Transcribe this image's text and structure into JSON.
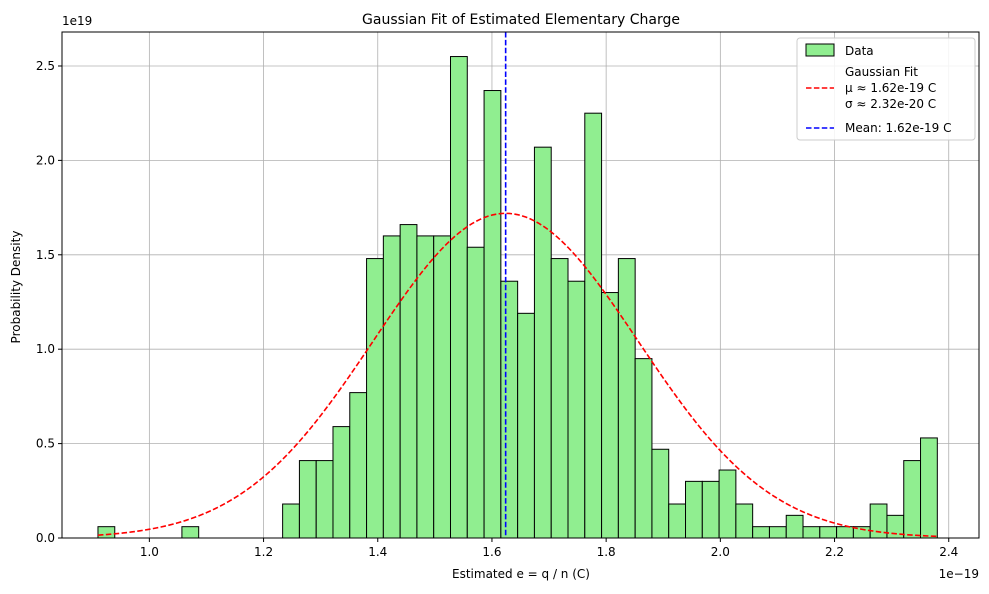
{
  "chart_data": {
    "type": "histogram",
    "title": "Gaussian Fit of Estimated Elementary Charge",
    "xlabel": "Estimated e = q / n (C)",
    "ylabel": "Probability Density",
    "x_offset_label": "1e−19",
    "y_offset_label": "1e19",
    "x_unit_scale": 1e-19,
    "y_unit_scale": 1e+19,
    "xlim": [
      0.847,
      2.453
    ],
    "ylim": [
      0,
      2.68
    ],
    "x_ticks": [
      1.0,
      1.2,
      1.4,
      1.6,
      1.8,
      2.0,
      2.2,
      2.4
    ],
    "x_tick_labels": [
      "1.0",
      "1.2",
      "1.4",
      "1.6",
      "1.8",
      "2.0",
      "2.2",
      "2.4"
    ],
    "y_ticks": [
      0.0,
      0.5,
      1.0,
      1.5,
      2.0,
      2.5
    ],
    "y_tick_labels": [
      "0.0",
      "0.5",
      "1.0",
      "1.5",
      "2.0",
      "2.5"
    ],
    "grid": true,
    "legend_position": "top-right",
    "bins": {
      "start": 0.91,
      "width": 0.0294,
      "density": [
        0.06,
        0,
        0,
        0,
        0,
        0.06,
        0,
        0,
        0,
        0,
        0,
        0.18,
        0.41,
        0.41,
        0.59,
        0.77,
        1.48,
        1.6,
        1.66,
        1.6,
        1.6,
        2.55,
        1.54,
        2.37,
        1.36,
        1.19,
        2.07,
        1.48,
        1.36,
        2.25,
        1.3,
        1.48,
        0.95,
        0.47,
        0.18,
        0.3,
        0.3,
        0.36,
        0.18,
        0.06,
        0.06,
        0.12,
        0.06,
        0.06,
        0.06,
        0.06,
        0.18,
        0.12,
        0.41,
        0.53
      ]
    },
    "series": [
      {
        "name": "Data",
        "type": "histogram",
        "color": "#90ee90",
        "edgecolor": "#000000"
      },
      {
        "name": "Gaussian Fit\nμ ≈ 1.62e-19 C\nσ ≈ 2.32e-20 C",
        "type": "line",
        "style": "dashed",
        "color": "#ff0000",
        "mu": 1.624,
        "sigma": 0.232,
        "x_range": [
          0.91,
          2.38
        ]
      },
      {
        "name": "Mean: 1.62e-19 C",
        "type": "vline",
        "style": "dashed",
        "color": "#0000ff",
        "x": 1.624
      }
    ],
    "legend": {
      "data_label": "Data",
      "fit_lines": [
        "Gaussian Fit",
        "μ ≈ 1.62e-19 C",
        "σ ≈ 2.32e-20 C"
      ],
      "mean_label": "Mean: 1.62e-19 C"
    }
  }
}
